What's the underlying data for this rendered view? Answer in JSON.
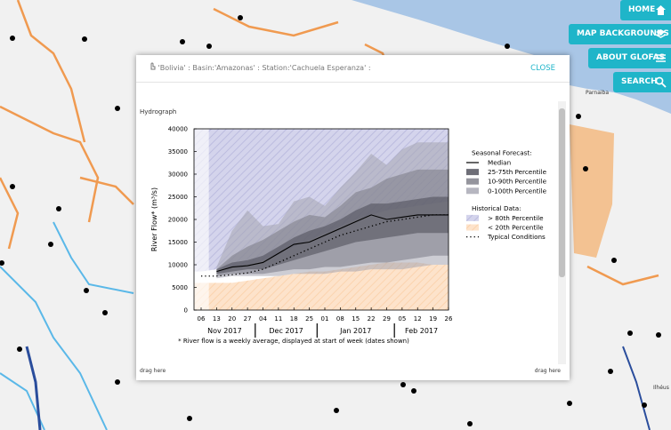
{
  "buttons": [
    "HOME",
    "MAP BACKGROUNDS",
    "ABOUT GLOFAS",
    "SEARCH"
  ],
  "map_labels": [
    "Parnaiba",
    "Ilhéus"
  ],
  "modal": {
    "title": "'Bolivia' : Basin:'Amazonas' : Station:'Cachuela Esperanza' :",
    "close": "CLOSE",
    "section": "Hydrograph",
    "drag_left": "drag here",
    "drag_right": "drag here"
  },
  "chart_data": {
    "type": "hydrograph",
    "y_label": "River Flow* (m³/s)",
    "footnote": "* River flow is a weekly average, displayed at start of week (dates shown)",
    "ylim": [
      0,
      40000
    ],
    "yticks": [
      0,
      5000,
      10000,
      15000,
      20000,
      25000,
      30000,
      35000,
      40000
    ],
    "categories": [
      "06",
      "13",
      "20",
      "27",
      "04",
      "11",
      "18",
      "25",
      "01",
      "08",
      "15",
      "22",
      "29",
      "05",
      "12",
      "19",
      "26"
    ],
    "month_labels": [
      "Nov 2017",
      "Dec 2017",
      "Jan 2017",
      "Feb 2017"
    ],
    "legend_groups": [
      {
        "title": "Seasonal Forecast:",
        "series": [
          {
            "name": "Median",
            "kind": "line",
            "color": "#000000",
            "values": [
              null,
              8500,
              9500,
              9800,
              10500,
              12500,
              14500,
              15000,
              16500,
              18000,
              19500,
              21000,
              20000,
              20500,
              21000,
              21000,
              21000
            ]
          },
          {
            "name": "25-75th Percentile",
            "kind": "band",
            "color": "#4a4a55",
            "lower": [
              null,
              8000,
              8500,
              9000,
              9000,
              10000,
              11000,
              12000,
              13000,
              14000,
              15000,
              15500,
              16000,
              16500,
              17000,
              17000,
              17000
            ],
            "upper": [
              null,
              9000,
              10500,
              11000,
              12000,
              14000,
              16000,
              17500,
              18500,
              20000,
              22000,
              23500,
              23500,
              24000,
              24500,
              25000,
              25000
            ]
          },
          {
            "name": "10-90th Percentile",
            "kind": "band",
            "color": "#7a7a85",
            "lower": [
              null,
              7500,
              8000,
              8000,
              8000,
              8500,
              9000,
              9000,
              9500,
              9500,
              10000,
              10500,
              10500,
              11000,
              11500,
              12000,
              12000
            ],
            "upper": [
              null,
              9000,
              12000,
              14000,
              15500,
              17500,
              19500,
              21000,
              20500,
              23000,
              26000,
              27000,
              29000,
              30000,
              31000,
              31000,
              31000
            ]
          },
          {
            "name": "0-100th Percentile",
            "kind": "band",
            "color": "#a4a4b0",
            "lower": [
              null,
              7000,
              7500,
              7500,
              7500,
              7500,
              8000,
              8000,
              8000,
              8500,
              8500,
              9000,
              9000,
              9000,
              9500,
              10000,
              10000
            ],
            "upper": [
              null,
              9500,
              17500,
              22000,
              18500,
              19000,
              24000,
              25000,
              23000,
              27000,
              30500,
              34500,
              32000,
              35500,
              37000,
              37000,
              37000
            ]
          }
        ]
      },
      {
        "title": "Historical Data:",
        "series": [
          {
            "name": "> 80th Percentile",
            "kind": "above",
            "color": "#cfcfea",
            "values": [
              8500,
              9000,
              9500,
              10000,
              11000,
              12500,
              14000,
              15500,
              17000,
              18500,
              20000,
              21000,
              22000,
              22500,
              23000,
              23500,
              24000
            ]
          },
          {
            "name": "< 20th Percentile",
            "kind": "below",
            "color": "#fde0c4",
            "values": [
              6000,
              6000,
              6000,
              6500,
              7000,
              7500,
              8000,
              8500,
              8500,
              9000,
              9500,
              10000,
              10500,
              10500,
              10500,
              10000,
              10000
            ]
          },
          {
            "name": "Typical Conditions",
            "kind": "dotted",
            "color": "#000000",
            "values": [
              7500,
              7500,
              7800,
              8200,
              9000,
              10500,
              12000,
              13500,
              15000,
              16500,
              17500,
              18500,
              19500,
              20000,
              20500,
              21000,
              21000
            ]
          }
        ]
      }
    ]
  }
}
